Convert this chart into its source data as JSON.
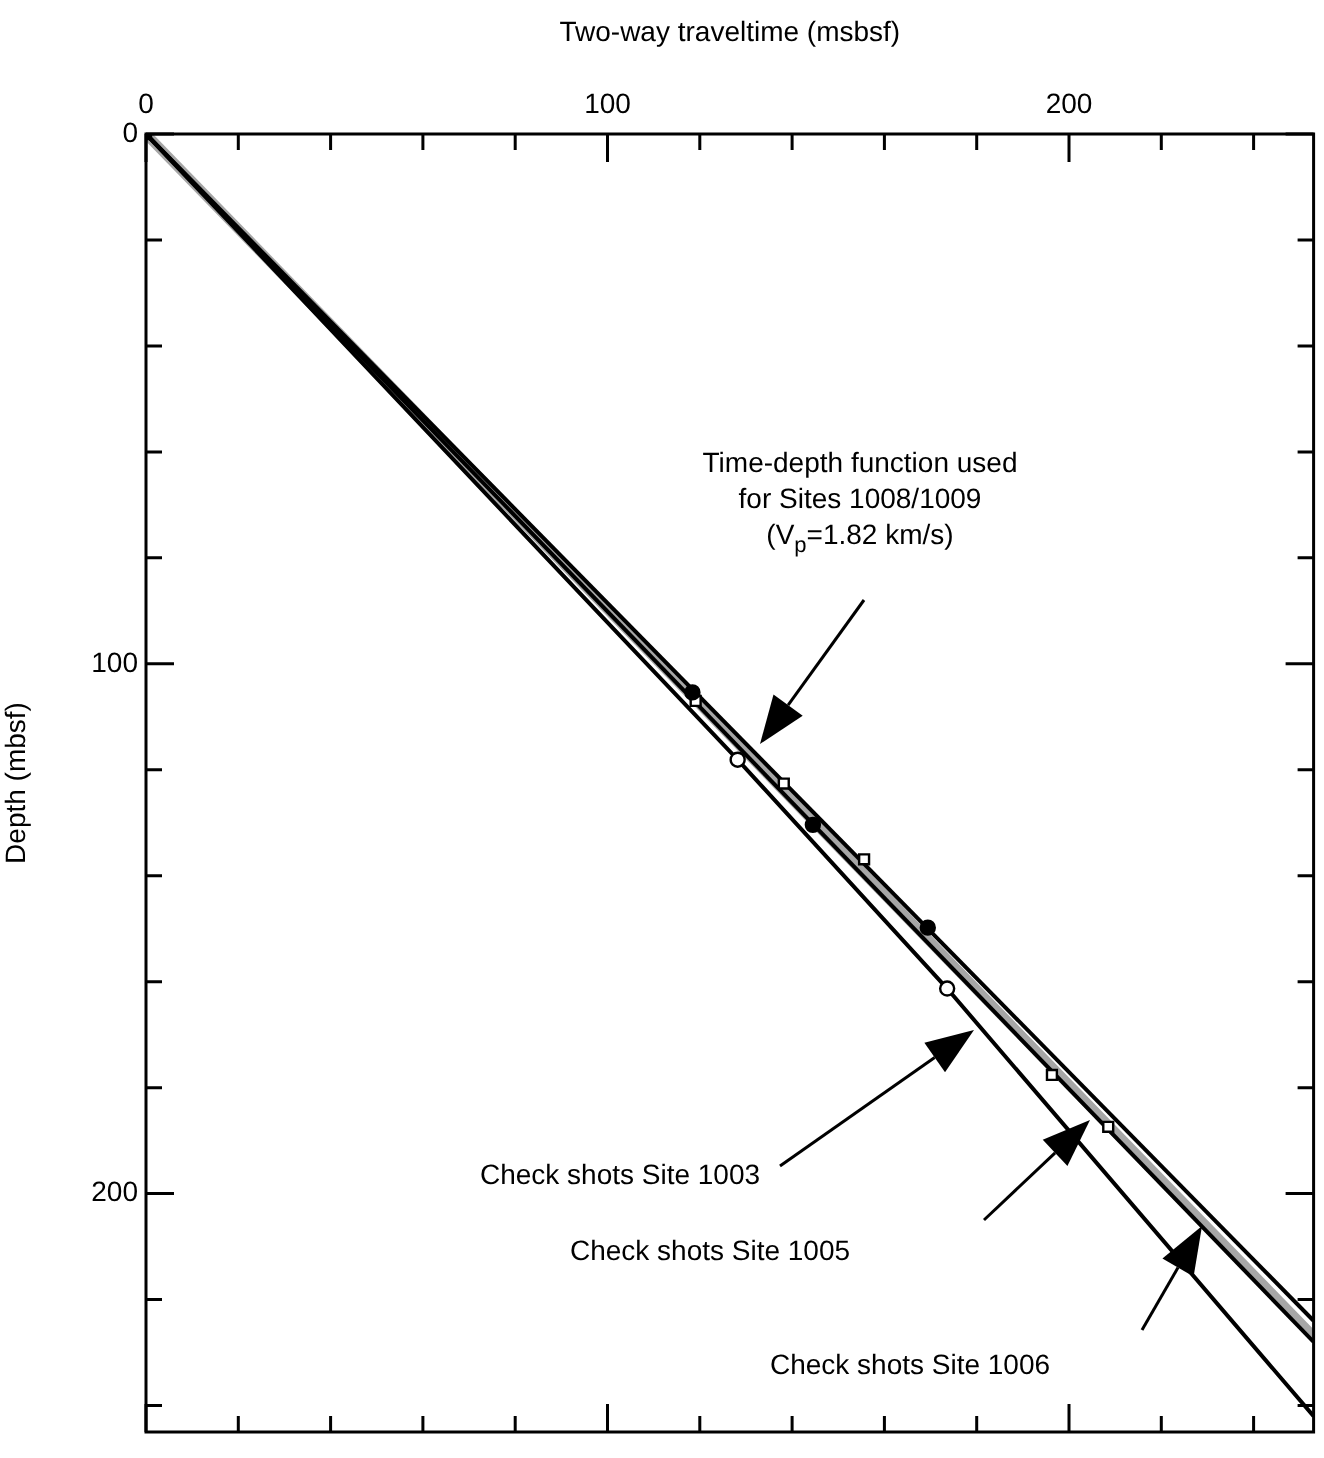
{
  "chart_data": {
    "type": "line",
    "xlabel": "Two-way traveltime (msbsf)",
    "ylabel": "Depth (mbsf)",
    "xlim": [
      0,
      253
    ],
    "ylim": [
      245,
      0
    ],
    "xticks": [
      0,
      {
        "value": 20,
        "label": null
      },
      {
        "value": 40,
        "label": null
      },
      {
        "value": 60,
        "label": null
      },
      {
        "value": 80,
        "label": null
      },
      100,
      {
        "value": 120,
        "label": null
      },
      {
        "value": 140,
        "label": null
      },
      {
        "value": 160,
        "label": null
      },
      {
        "value": 180,
        "label": null
      },
      200,
      {
        "value": 220,
        "label": null
      },
      {
        "value": 240,
        "label": null
      }
    ],
    "yticks": [
      0,
      {
        "value": 20,
        "label": null
      },
      {
        "value": 40,
        "label": null
      },
      {
        "value": 60,
        "label": null
      },
      {
        "value": 80,
        "label": null
      },
      100,
      {
        "value": 120,
        "label": null
      },
      {
        "value": 140,
        "label": null
      },
      {
        "value": 160,
        "label": null
      },
      {
        "value": 180,
        "label": null
      },
      200,
      {
        "value": 220,
        "label": null
      },
      {
        "value": 240,
        "label": null
      }
    ],
    "grid": false,
    "legend": false,
    "series": [
      {
        "color": "#a6a6a6",
        "marker": "none",
        "x": [
          0,
          253
        ],
        "values": [
          0,
          227
        ]
      },
      {
        "color": "#000000",
        "marker": "none",
        "x": [
          0,
          253
        ],
        "values": [
          0,
          224
        ]
      },
      {
        "color": "#000000",
        "marker": "none",
        "x": [
          0,
          253
        ],
        "values": [
          0,
          228
        ]
      },
      {
        "color": "#000000",
        "marker": "none",
        "x": [
          0,
          102.8,
          128.2,
          173.6,
          253
        ],
        "values": [
          0,
          94.8,
          118.1,
          161.3,
          242
        ]
      },
      {
        "type": "scatter",
        "color": "#000000",
        "marker": "circle",
        "x": [
          118.4,
          144.5,
          169.4
        ],
        "values": [
          105.4,
          130.4,
          149.8
        ]
      },
      {
        "type": "scatter",
        "color": "#ffffff",
        "marker": "circle",
        "x": [
          128.2,
          173.6
        ],
        "values": [
          118.1,
          161.3
        ]
      },
      {
        "type": "scatter",
        "color": "#ffffff",
        "marker": "square",
        "x": [
          119.1,
          138.2,
          155.6,
          196.3,
          208.5
        ],
        "values": [
          107,
          122.6,
          136.9,
          177.6,
          187.4
        ]
      },
      {
        "type": "scatter",
        "color": "#000000",
        "marker": "square",
        "x": [
          0
        ],
        "values": [
          0
        ]
      }
    ],
    "annotations": [
      "Time-depth function used\nfor Sites 1008/1009\n(V$_{p}$=1.82 km/s)",
      "Check shots Site 1003",
      "Check shots Site 1005",
      "Check shots Site 1006"
    ]
  }
}
